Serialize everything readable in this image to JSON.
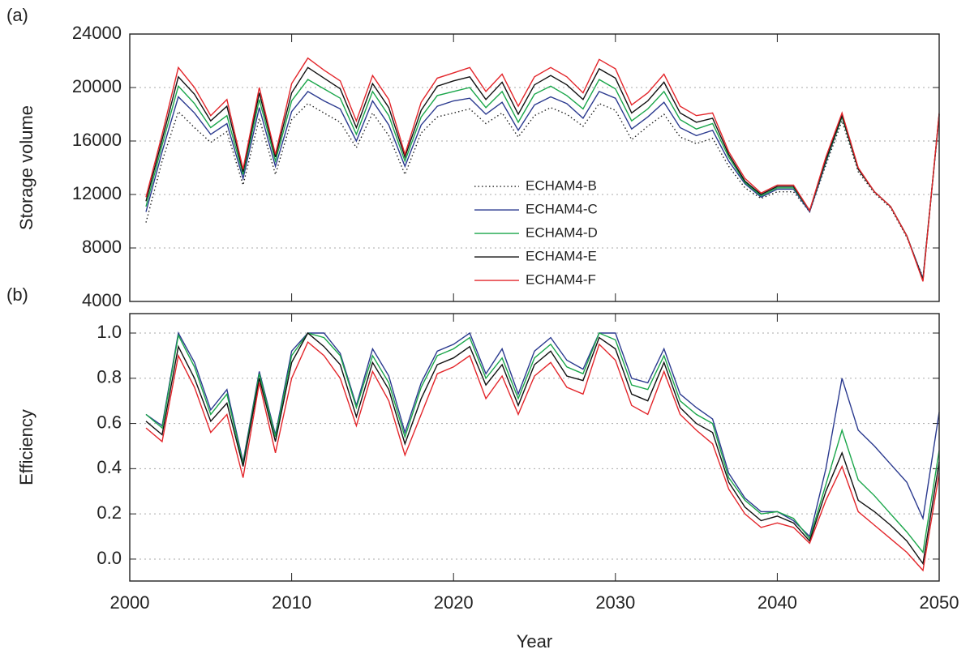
{
  "chart_data": [
    {
      "type": "line",
      "label": "(a)",
      "y_label": "Storage volume",
      "x": [
        2001,
        2002,
        2003,
        2004,
        2005,
        2006,
        2007,
        2008,
        2009,
        2010,
        2011,
        2012,
        2013,
        2014,
        2015,
        2016,
        2017,
        2018,
        2019,
        2020,
        2021,
        2022,
        2023,
        2024,
        2025,
        2026,
        2027,
        2028,
        2029,
        2030,
        2031,
        2032,
        2033,
        2034,
        2035,
        2036,
        2037,
        2038,
        2039,
        2040,
        2041,
        2042,
        2043,
        2044,
        2045,
        2046,
        2047,
        2048,
        2049,
        2050
      ],
      "xlim": [
        2000,
        2050
      ],
      "ylim": [
        4000,
        24000
      ],
      "yticks": [
        4000,
        8000,
        12000,
        16000,
        20000,
        24000
      ],
      "grid": true,
      "legend": "center",
      "series": [
        {
          "name": "ECHAM4-B",
          "color": "#222222",
          "linestyle": "dotted",
          "values": [
            9900,
            14500,
            18200,
            17000,
            15900,
            16700,
            12700,
            17700,
            13500,
            17600,
            18800,
            18100,
            17400,
            15500,
            18100,
            16400,
            13500,
            16600,
            17800,
            18100,
            18400,
            17300,
            18100,
            16300,
            17900,
            18500,
            18000,
            17100,
            18800,
            18300,
            16100,
            17100,
            18000,
            16300,
            15800,
            16200,
            14100,
            12500,
            11700,
            12200,
            12200,
            10700,
            14200,
            17500,
            13700,
            12100,
            11000,
            8800,
            5800,
            17800
          ]
        },
        {
          "name": "ECHAM4-C",
          "color": "#2b3a8f",
          "linestyle": "solid",
          "values": [
            10700,
            15200,
            19300,
            18100,
            16500,
            17300,
            13200,
            18500,
            14100,
            18200,
            19700,
            19000,
            18400,
            16000,
            19000,
            17200,
            14100,
            17200,
            18600,
            19000,
            19200,
            18000,
            18900,
            16800,
            18700,
            19300,
            18800,
            17700,
            19700,
            19200,
            16900,
            17800,
            18900,
            17000,
            16400,
            16800,
            14500,
            12800,
            11800,
            12400,
            12400,
            10700,
            14400,
            17800,
            13900,
            12200,
            11100,
            8900,
            5700,
            17900
          ]
        },
        {
          "name": "ECHAM4-D",
          "color": "#1aa64a",
          "linestyle": "solid",
          "values": [
            11100,
            15700,
            20100,
            18800,
            17000,
            17900,
            13500,
            19100,
            14500,
            19000,
            20600,
            19900,
            19200,
            16500,
            19700,
            17900,
            14500,
            17800,
            19400,
            19700,
            20000,
            18500,
            19700,
            17400,
            19500,
            20100,
            19400,
            18400,
            20600,
            19900,
            17500,
            18400,
            19700,
            17600,
            16900,
            17300,
            14800,
            12900,
            11900,
            12500,
            12500,
            10800,
            14500,
            17800,
            13900,
            12200,
            11100,
            8900,
            5600,
            18000
          ]
        },
        {
          "name": "ECHAM4-E",
          "color": "#111111",
          "linestyle": "solid",
          "values": [
            11500,
            16100,
            20800,
            19500,
            17500,
            18600,
            13700,
            19600,
            14800,
            19600,
            21500,
            20700,
            19900,
            17000,
            20300,
            18500,
            14800,
            18300,
            20100,
            20500,
            20800,
            19100,
            20400,
            18000,
            20200,
            20900,
            20200,
            19100,
            21400,
            20700,
            18100,
            19000,
            20400,
            18100,
            17400,
            17700,
            15000,
            13000,
            12000,
            12600,
            12600,
            10800,
            14600,
            17900,
            13900,
            12200,
            11100,
            8900,
            5600,
            18000
          ]
        },
        {
          "name": "ECHAM4-F",
          "color": "#e3262b",
          "linestyle": "solid",
          "values": [
            11800,
            16500,
            21500,
            20000,
            17900,
            19100,
            13900,
            20000,
            15000,
            20300,
            22200,
            21300,
            20500,
            17500,
            20900,
            19100,
            15000,
            18900,
            20700,
            21100,
            21500,
            19700,
            21000,
            18600,
            20800,
            21500,
            20800,
            19600,
            22100,
            21400,
            18700,
            19600,
            21000,
            18600,
            17900,
            18100,
            15200,
            13200,
            12100,
            12700,
            12700,
            10800,
            14800,
            18100,
            14000,
            12200,
            11100,
            8900,
            5500,
            18100
          ]
        }
      ]
    },
    {
      "type": "line",
      "label": "(b)",
      "y_label": "Efficiency",
      "x_label": "Year",
      "x": [
        2001,
        2002,
        2003,
        2004,
        2005,
        2006,
        2007,
        2008,
        2009,
        2010,
        2011,
        2012,
        2013,
        2014,
        2015,
        2016,
        2017,
        2018,
        2019,
        2020,
        2021,
        2022,
        2023,
        2024,
        2025,
        2026,
        2027,
        2028,
        2029,
        2030,
        2031,
        2032,
        2033,
        2034,
        2035,
        2036,
        2037,
        2038,
        2039,
        2040,
        2041,
        2042,
        2043,
        2044,
        2045,
        2046,
        2047,
        2048,
        2049,
        2050
      ],
      "xlim": [
        2000,
        2050
      ],
      "xticks": [
        2000,
        2010,
        2020,
        2030,
        2040,
        2050
      ],
      "ylim": [
        -0.097,
        1.086
      ],
      "yticks": [
        {
          "value": 0,
          "label": "0.0"
        },
        0.2,
        0.4,
        0.6,
        0.8,
        {
          "value": 1,
          "label": "1.0"
        }
      ],
      "grid": true,
      "series": [
        {
          "color": "#2b3a8f",
          "linestyle": "solid",
          "values": [
            0.64,
            0.59,
            1.0,
            0.87,
            0.66,
            0.75,
            0.43,
            0.83,
            0.55,
            0.92,
            1.0,
            1.0,
            0.91,
            0.68,
            0.93,
            0.81,
            0.56,
            0.78,
            0.92,
            0.95,
            1.0,
            0.82,
            0.93,
            0.73,
            0.92,
            0.98,
            0.88,
            0.84,
            1.0,
            1.0,
            0.8,
            0.78,
            0.93,
            0.73,
            0.67,
            0.62,
            0.38,
            0.27,
            0.21,
            0.21,
            0.17,
            0.1,
            0.4,
            0.8,
            0.57,
            0.5,
            0.42,
            0.34,
            0.18,
            0.65
          ]
        },
        {
          "color": "#1aa64a",
          "linestyle": "solid",
          "values": [
            0.64,
            0.58,
            0.99,
            0.85,
            0.64,
            0.73,
            0.42,
            0.82,
            0.54,
            0.9,
            1.0,
            0.98,
            0.9,
            0.67,
            0.9,
            0.78,
            0.54,
            0.76,
            0.9,
            0.93,
            0.98,
            0.8,
            0.89,
            0.71,
            0.89,
            0.95,
            0.85,
            0.82,
            1.0,
            0.97,
            0.77,
            0.75,
            0.9,
            0.7,
            0.64,
            0.6,
            0.36,
            0.26,
            0.2,
            0.21,
            0.18,
            0.09,
            0.33,
            0.57,
            0.35,
            0.28,
            0.2,
            0.12,
            0.03,
            0.48
          ]
        },
        {
          "color": "#111111",
          "linestyle": "solid",
          "values": [
            0.61,
            0.55,
            0.94,
            0.8,
            0.61,
            0.69,
            0.41,
            0.8,
            0.52,
            0.87,
            1.0,
            0.94,
            0.86,
            0.63,
            0.87,
            0.75,
            0.51,
            0.71,
            0.86,
            0.89,
            0.94,
            0.77,
            0.86,
            0.68,
            0.86,
            0.92,
            0.81,
            0.79,
            0.98,
            0.93,
            0.73,
            0.7,
            0.87,
            0.67,
            0.6,
            0.56,
            0.34,
            0.23,
            0.17,
            0.19,
            0.16,
            0.08,
            0.3,
            0.47,
            0.26,
            0.21,
            0.15,
            0.08,
            -0.02,
            0.43
          ]
        },
        {
          "color": "#e3262b",
          "linestyle": "solid",
          "values": [
            0.58,
            0.52,
            0.9,
            0.76,
            0.56,
            0.64,
            0.36,
            0.78,
            0.47,
            0.8,
            0.96,
            0.9,
            0.8,
            0.59,
            0.83,
            0.7,
            0.46,
            0.64,
            0.82,
            0.85,
            0.9,
            0.71,
            0.81,
            0.64,
            0.81,
            0.87,
            0.76,
            0.73,
            0.95,
            0.88,
            0.68,
            0.64,
            0.83,
            0.64,
            0.57,
            0.51,
            0.31,
            0.2,
            0.14,
            0.16,
            0.14,
            0.07,
            0.26,
            0.41,
            0.21,
            0.15,
            0.09,
            0.03,
            -0.05,
            0.38
          ]
        }
      ]
    }
  ]
}
